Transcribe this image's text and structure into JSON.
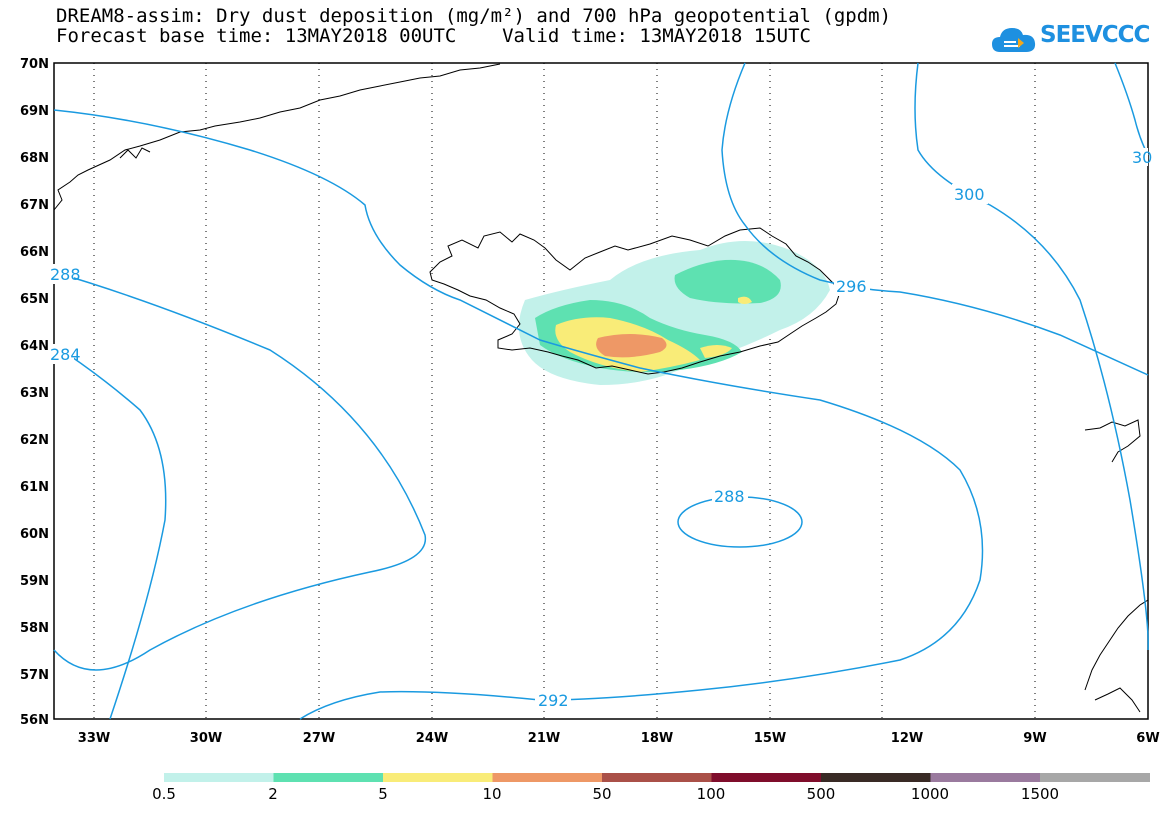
{
  "header": {
    "line1": "DREAM8-assim: Dry dust deposition (mg/m²) and 700 hPa geopotential (gpdm)",
    "line2": "Forecast base time: 13MAY2018 00UTC    Valid time: 13MAY2018 15UTC"
  },
  "logo": {
    "text": "SEEVCCC",
    "icon": "cloud-icon"
  },
  "map": {
    "lat_labels": [
      "70N",
      "69N",
      "68N",
      "67N",
      "66N",
      "65N",
      "64N",
      "63N",
      "62N",
      "61N",
      "60N",
      "59N",
      "58N",
      "57N",
      "56N"
    ],
    "lon_labels": [
      "33W",
      "30W",
      "27W",
      "24W",
      "21W",
      "18W",
      "15W",
      "12W",
      "9W",
      "6W"
    ],
    "contour_labels": [
      "300",
      "30",
      "296",
      "288",
      "292",
      "288",
      "284"
    ],
    "contour_color": "#1a9ae0",
    "coastline_color": "#000000"
  },
  "legend": {
    "labels": [
      "0.5",
      "2",
      "5",
      "10",
      "50",
      "100",
      "500",
      "1000",
      "1500"
    ],
    "colors": [
      "#c2f1ea",
      "#5ee1b1",
      "#f9ec78",
      "#ee9866",
      "#aa5048",
      "#7f0d2b",
      "#392a25",
      "#9a7a9e",
      "#a7a7a7"
    ]
  }
}
